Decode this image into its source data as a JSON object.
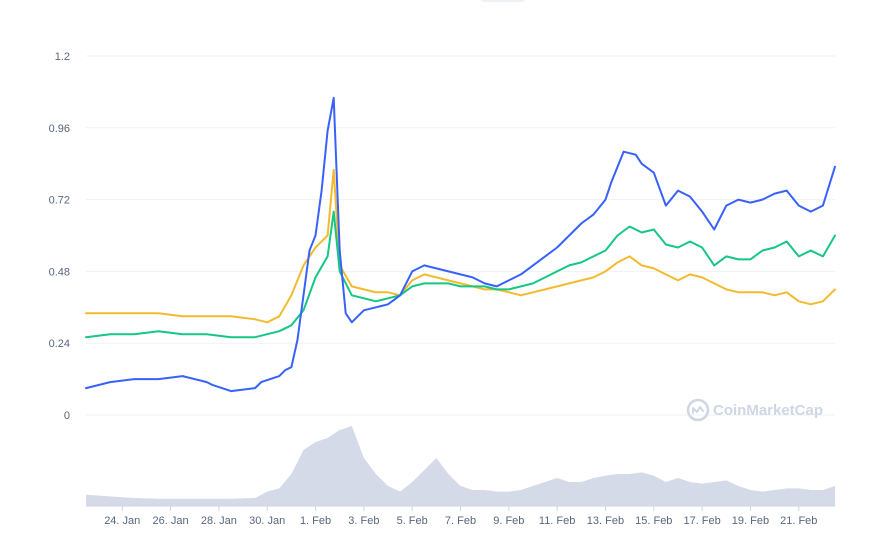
{
  "chart_data": {
    "type": "line",
    "title": "",
    "xlabel": "",
    "ylabel": "",
    "ylim": [
      0,
      1.2
    ],
    "y_ticks": [
      "0",
      "0.24",
      "0.48",
      "0.72",
      "0.96",
      "1.2"
    ],
    "x_ticks": [
      "24. Jan",
      "26. Jan",
      "28. Jan",
      "30. Jan",
      "1. Feb",
      "3. Feb",
      "5. Feb",
      "7. Feb",
      "9. Feb",
      "11. Feb",
      "13. Feb",
      "15. Feb",
      "17. Feb",
      "19. Feb",
      "21. Feb"
    ],
    "x_range": [
      "2021-01-22T12:00",
      "2021-02-22T12:00"
    ],
    "grid": true,
    "watermark": "CoinMarketCap",
    "series": [
      {
        "color": "#3861fb",
        "x": [
          "2021-01-22T12:00",
          "2021-01-23T12:00",
          "2021-01-24T12:00",
          "2021-01-25T12:00",
          "2021-01-26T12:00",
          "2021-01-27T12:00",
          "2021-01-27T18:00",
          "2021-01-28T12:00",
          "2021-01-29T12:00",
          "2021-01-29T18:00",
          "2021-01-30T12:00",
          "2021-01-30T18:00",
          "2021-01-31T00:00",
          "2021-01-31T06:00",
          "2021-01-31T12:00",
          "2021-01-31T18:00",
          "2021-02-01T00:00",
          "2021-02-01T06:00",
          "2021-02-01T12:00",
          "2021-02-01T18:00",
          "2021-02-02T00:00",
          "2021-02-02T06:00",
          "2021-02-02T12:00",
          "2021-02-02T18:00",
          "2021-02-03T00:00",
          "2021-02-03T12:00",
          "2021-02-04T00:00",
          "2021-02-04T12:00",
          "2021-02-05T00:00",
          "2021-02-05T12:00",
          "2021-02-06T00:00",
          "2021-02-06T12:00",
          "2021-02-07T00:00",
          "2021-02-07T12:00",
          "2021-02-08T00:00",
          "2021-02-08T12:00",
          "2021-02-09T00:00",
          "2021-02-09T12:00",
          "2021-02-10T00:00",
          "2021-02-10T12:00",
          "2021-02-11T00:00",
          "2021-02-11T12:00",
          "2021-02-12T00:00",
          "2021-02-12T12:00",
          "2021-02-13T00:00",
          "2021-02-13T06:00",
          "2021-02-13T18:00",
          "2021-02-14T06:00",
          "2021-02-14T12:00",
          "2021-02-15T00:00",
          "2021-02-15T12:00",
          "2021-02-16T00:00",
          "2021-02-16T12:00",
          "2021-02-17T00:00",
          "2021-02-17T12:00",
          "2021-02-18T00:00",
          "2021-02-18T12:00",
          "2021-02-19T00:00",
          "2021-02-19T12:00",
          "2021-02-20T00:00",
          "2021-02-20T12:00",
          "2021-02-21T00:00",
          "2021-02-21T12:00",
          "2021-02-22T00:00",
          "2021-02-22T12:00"
        ],
        "y": [
          0.09,
          0.11,
          0.12,
          0.12,
          0.13,
          0.11,
          0.1,
          0.08,
          0.09,
          0.11,
          0.13,
          0.15,
          0.16,
          0.25,
          0.4,
          0.55,
          0.6,
          0.75,
          0.95,
          1.06,
          0.55,
          0.34,
          0.31,
          0.33,
          0.35,
          0.36,
          0.37,
          0.4,
          0.48,
          0.5,
          0.49,
          0.48,
          0.47,
          0.46,
          0.44,
          0.43,
          0.45,
          0.47,
          0.5,
          0.53,
          0.56,
          0.6,
          0.64,
          0.67,
          0.72,
          0.78,
          0.88,
          0.87,
          0.84,
          0.81,
          0.7,
          0.75,
          0.73,
          0.68,
          0.62,
          0.7,
          0.72,
          0.71,
          0.72,
          0.74,
          0.75,
          0.7,
          0.68,
          0.7,
          0.83
        ]
      },
      {
        "color": "#16c784",
        "x": [
          "2021-01-22T12:00",
          "2021-01-23T12:00",
          "2021-01-24T12:00",
          "2021-01-25T12:00",
          "2021-01-26T12:00",
          "2021-01-27T12:00",
          "2021-01-28T12:00",
          "2021-01-29T12:00",
          "2021-01-30T12:00",
          "2021-01-31T00:00",
          "2021-01-31T12:00",
          "2021-02-01T00:00",
          "2021-02-01T12:00",
          "2021-02-01T18:00",
          "2021-02-02T00:00",
          "2021-02-02T12:00",
          "2021-02-03T00:00",
          "2021-02-03T12:00",
          "2021-02-04T00:00",
          "2021-02-04T12:00",
          "2021-02-05T00:00",
          "2021-02-05T12:00",
          "2021-02-06T00:00",
          "2021-02-06T12:00",
          "2021-02-07T00:00",
          "2021-02-07T12:00",
          "2021-02-08T00:00",
          "2021-02-08T12:00",
          "2021-02-09T00:00",
          "2021-02-09T12:00",
          "2021-02-10T00:00",
          "2021-02-10T12:00",
          "2021-02-11T00:00",
          "2021-02-11T12:00",
          "2021-02-12T00:00",
          "2021-02-12T12:00",
          "2021-02-13T00:00",
          "2021-02-13T12:00",
          "2021-02-14T00:00",
          "2021-02-14T12:00",
          "2021-02-15T00:00",
          "2021-02-15T12:00",
          "2021-02-16T00:00",
          "2021-02-16T12:00",
          "2021-02-17T00:00",
          "2021-02-17T12:00",
          "2021-02-18T00:00",
          "2021-02-18T12:00",
          "2021-02-19T00:00",
          "2021-02-19T12:00",
          "2021-02-20T00:00",
          "2021-02-20T12:00",
          "2021-02-21T00:00",
          "2021-02-21T12:00",
          "2021-02-22T00:00",
          "2021-02-22T12:00"
        ],
        "y": [
          0.26,
          0.27,
          0.27,
          0.28,
          0.27,
          0.27,
          0.26,
          0.26,
          0.28,
          0.3,
          0.35,
          0.46,
          0.53,
          0.68,
          0.48,
          0.4,
          0.39,
          0.38,
          0.39,
          0.4,
          0.43,
          0.44,
          0.44,
          0.44,
          0.43,
          0.43,
          0.43,
          0.42,
          0.42,
          0.43,
          0.44,
          0.46,
          0.48,
          0.5,
          0.51,
          0.53,
          0.55,
          0.6,
          0.63,
          0.61,
          0.62,
          0.57,
          0.56,
          0.58,
          0.56,
          0.5,
          0.53,
          0.52,
          0.52,
          0.55,
          0.56,
          0.58,
          0.53,
          0.55,
          0.53,
          0.6
        ]
      },
      {
        "color": "#f3ba2f",
        "x": [
          "2021-01-22T12:00",
          "2021-01-23T12:00",
          "2021-01-24T12:00",
          "2021-01-25T12:00",
          "2021-01-26T12:00",
          "2021-01-27T12:00",
          "2021-01-28T12:00",
          "2021-01-29T12:00",
          "2021-01-30T00:00",
          "2021-01-30T12:00",
          "2021-01-31T00:00",
          "2021-01-31T12:00",
          "2021-02-01T00:00",
          "2021-02-01T12:00",
          "2021-02-01T18:00",
          "2021-02-02T00:00",
          "2021-02-02T12:00",
          "2021-02-03T00:00",
          "2021-02-03T12:00",
          "2021-02-04T00:00",
          "2021-02-04T12:00",
          "2021-02-05T00:00",
          "2021-02-05T12:00",
          "2021-02-06T00:00",
          "2021-02-06T12:00",
          "2021-02-07T00:00",
          "2021-02-07T12:00",
          "2021-02-08T00:00",
          "2021-02-08T12:00",
          "2021-02-09T00:00",
          "2021-02-09T12:00",
          "2021-02-10T00:00",
          "2021-02-10T12:00",
          "2021-02-11T00:00",
          "2021-02-11T12:00",
          "2021-02-12T00:00",
          "2021-02-12T12:00",
          "2021-02-13T00:00",
          "2021-02-13T12:00",
          "2021-02-14T00:00",
          "2021-02-14T12:00",
          "2021-02-15T00:00",
          "2021-02-15T12:00",
          "2021-02-16T00:00",
          "2021-02-16T12:00",
          "2021-02-17T00:00",
          "2021-02-17T12:00",
          "2021-02-18T00:00",
          "2021-02-18T12:00",
          "2021-02-19T00:00",
          "2021-02-19T12:00",
          "2021-02-20T00:00",
          "2021-02-20T12:00",
          "2021-02-21T00:00",
          "2021-02-21T12:00",
          "2021-02-22T00:00",
          "2021-02-22T12:00"
        ],
        "y": [
          0.34,
          0.34,
          0.34,
          0.34,
          0.33,
          0.33,
          0.33,
          0.32,
          0.31,
          0.33,
          0.4,
          0.5,
          0.56,
          0.6,
          0.82,
          0.5,
          0.43,
          0.42,
          0.41,
          0.41,
          0.4,
          0.45,
          0.47,
          0.46,
          0.45,
          0.44,
          0.43,
          0.42,
          0.42,
          0.41,
          0.4,
          0.41,
          0.42,
          0.43,
          0.44,
          0.45,
          0.46,
          0.48,
          0.51,
          0.53,
          0.5,
          0.49,
          0.47,
          0.45,
          0.47,
          0.46,
          0.44,
          0.42,
          0.41,
          0.41,
          0.41,
          0.4,
          0.41,
          0.38,
          0.37,
          0.38,
          0.42
        ]
      }
    ],
    "volume": {
      "color": "#cfd6e4",
      "x": [
        "2021-01-22T12:00",
        "2021-01-23T12:00",
        "2021-01-24T12:00",
        "2021-01-25T12:00",
        "2021-01-26T12:00",
        "2021-01-27T12:00",
        "2021-01-28T12:00",
        "2021-01-29T12:00",
        "2021-01-30T00:00",
        "2021-01-30T12:00",
        "2021-01-31T00:00",
        "2021-01-31T12:00",
        "2021-02-01T00:00",
        "2021-02-01T12:00",
        "2021-02-02T00:00",
        "2021-02-02T12:00",
        "2021-02-03T00:00",
        "2021-02-03T12:00",
        "2021-02-04T00:00",
        "2021-02-04T12:00",
        "2021-02-05T00:00",
        "2021-02-05T12:00",
        "2021-02-06T00:00",
        "2021-02-06T12:00",
        "2021-02-07T00:00",
        "2021-02-07T12:00",
        "2021-02-08T00:00",
        "2021-02-08T12:00",
        "2021-02-09T00:00",
        "2021-02-09T12:00",
        "2021-02-10T00:00",
        "2021-02-10T12:00",
        "2021-02-11T00:00",
        "2021-02-11T12:00",
        "2021-02-12T00:00",
        "2021-02-12T12:00",
        "2021-02-13T00:00",
        "2021-02-13T12:00",
        "2021-02-14T00:00",
        "2021-02-14T12:00",
        "2021-02-15T00:00",
        "2021-02-15T12:00",
        "2021-02-16T00:00",
        "2021-02-16T12:00",
        "2021-02-17T00:00",
        "2021-02-17T12:00",
        "2021-02-18T00:00",
        "2021-02-18T12:00",
        "2021-02-19T00:00",
        "2021-02-19T12:00",
        "2021-02-20T00:00",
        "2021-02-20T12:00",
        "2021-02-21T00:00",
        "2021-02-21T12:00",
        "2021-02-22T00:00",
        "2021-02-22T12:00"
      ],
      "y": [
        0.14,
        0.12,
        0.1,
        0.09,
        0.09,
        0.09,
        0.09,
        0.1,
        0.18,
        0.22,
        0.4,
        0.7,
        0.8,
        0.85,
        0.95,
        1.0,
        0.6,
        0.4,
        0.25,
        0.18,
        0.3,
        0.45,
        0.6,
        0.4,
        0.25,
        0.2,
        0.2,
        0.18,
        0.18,
        0.2,
        0.25,
        0.3,
        0.35,
        0.3,
        0.3,
        0.35,
        0.38,
        0.4,
        0.4,
        0.42,
        0.38,
        0.3,
        0.35,
        0.3,
        0.28,
        0.3,
        0.32,
        0.25,
        0.2,
        0.18,
        0.2,
        0.22,
        0.22,
        0.2,
        0.2,
        0.25
      ]
    }
  }
}
